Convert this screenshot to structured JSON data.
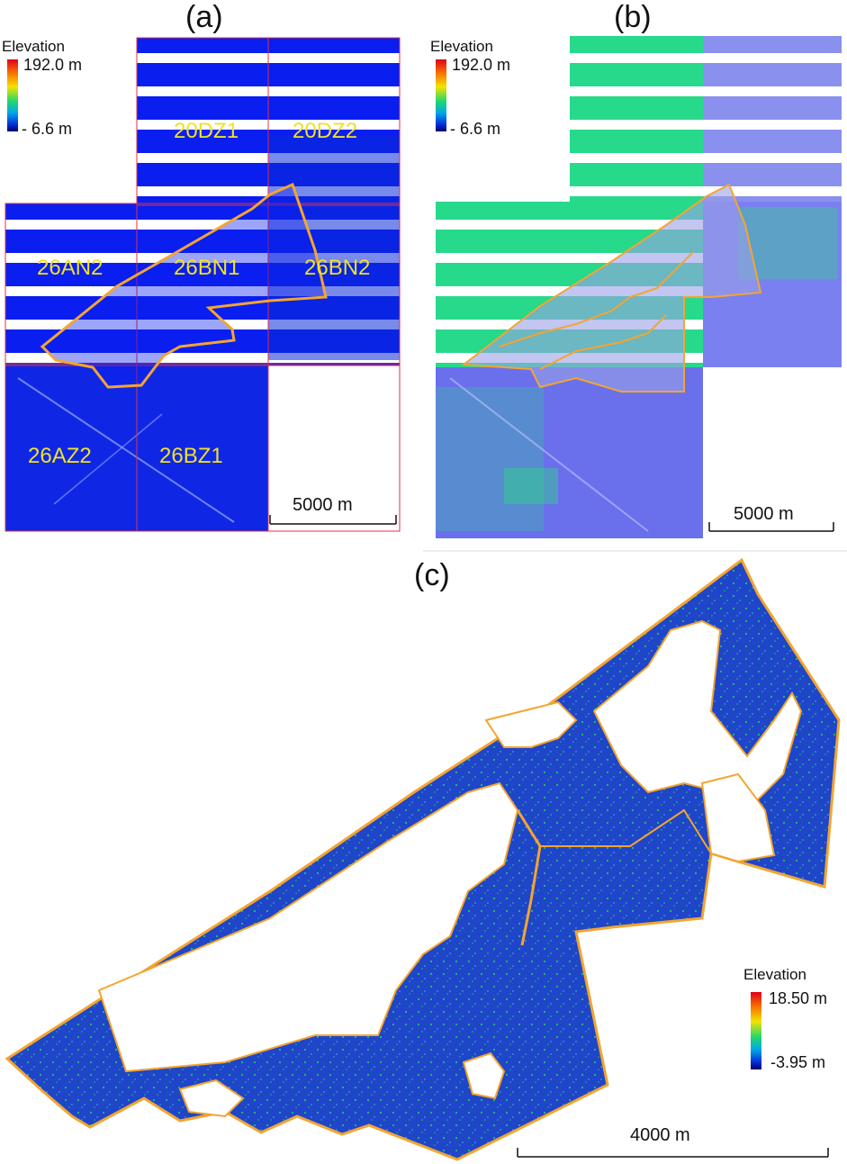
{
  "panels": {
    "a": {
      "label": "(a)",
      "legend": {
        "title": "Elevation",
        "max": "192.0 m",
        "min": "- 6.6 m"
      },
      "tiles": [
        "20DZ1",
        "20DZ2",
        "26AN2",
        "26BN1",
        "26BN2",
        "26AZ2",
        "26BZ1"
      ],
      "scale": "5000 m"
    },
    "b": {
      "label": "(b)",
      "legend": {
        "title": "Elevation",
        "max": "192.0 m",
        "min": "- 6.6 m"
      },
      "scale": "5000 m"
    },
    "c": {
      "label": "(c)",
      "legend": {
        "title": "Elevation",
        "max": "18.50 m",
        "min": "-3.95 m"
      },
      "scale": "4000 m"
    }
  },
  "colors": {
    "water_blue": "#0a1ef0",
    "lavender": "#7b80f0",
    "green": "#25e07a",
    "boundary_orange": "#f3a530",
    "tile_grid": "#e0304a",
    "tile_label": "#f0e02a",
    "dark_blue": "#1c3ec8"
  }
}
